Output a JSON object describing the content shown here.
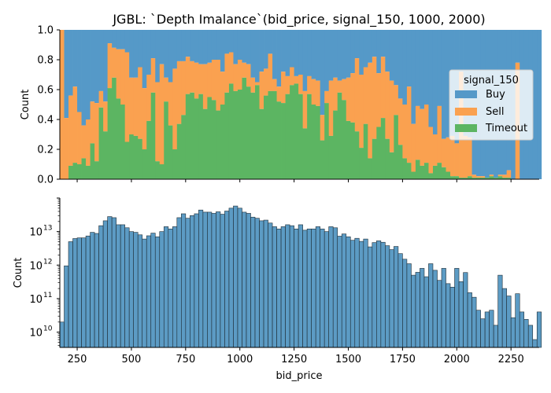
{
  "figure": {
    "title": "JGBL: `Depth Imalance`(bid_price, signal_150, 1000, 2000)",
    "xlabel": "bid_price"
  },
  "chart_data": [
    {
      "type": "bar",
      "subtype": "stacked-fill-histogram",
      "title": "JGBL: `Depth Imalance`(bid_price, signal_150, 1000, 2000)",
      "xlabel": "",
      "ylabel": "Count",
      "xlim": [
        170,
        2380
      ],
      "ylim": [
        0,
        1
      ],
      "yticks": [
        0.0,
        0.2,
        0.4,
        0.6,
        0.8,
        1.0
      ],
      "ytick_labels": [
        "0.0",
        "0.2",
        "0.4",
        "0.6",
        "0.8",
        "1.0"
      ],
      "bin_start": 170,
      "bin_width": 20,
      "legend": {
        "title": "signal_150",
        "placement": "center-right",
        "entries": [
          "Buy",
          "Sell",
          "Timeout"
        ]
      },
      "colors": {
        "Buy": "#5599c8",
        "Sell": "#faa150",
        "Timeout": "#5cb562"
      },
      "series": [
        {
          "name": "Timeout",
          "values": [
            0,
            0,
            0.09,
            0.11,
            0.1,
            0.14,
            0.09,
            0.24,
            0.12,
            0.48,
            0.32,
            0.61,
            0.68,
            0.54,
            0.5,
            0.25,
            0.3,
            0.29,
            0.27,
            0.2,
            0.39,
            0.58,
            0.12,
            0.1,
            0.52,
            0.36,
            0.2,
            0.37,
            0.43,
            0.57,
            0.58,
            0.54,
            0.57,
            0.47,
            0.55,
            0.53,
            0.46,
            0.5,
            0.58,
            0.64,
            0.59,
            0.6,
            0.68,
            0.62,
            0.58,
            0.63,
            0.47,
            0.56,
            0.59,
            0.59,
            0.52,
            0.51,
            0.57,
            0.63,
            0.64,
            0.57,
            0.34,
            0.57,
            0.5,
            0.49,
            0.26,
            0.51,
            0.29,
            0.46,
            0.58,
            0.53,
            0.39,
            0.38,
            0.32,
            0.21,
            0.37,
            0.14,
            0.27,
            0.35,
            0.41,
            0.27,
            0.18,
            0.43,
            0.23,
            0.14,
            0.11,
            0.05,
            0.13,
            0.09,
            0.11,
            0.04,
            0.09,
            0.11,
            0.08,
            0.05,
            0.02,
            0.02,
            0.01,
            0.01,
            0.02,
            0.01,
            0.01,
            0.01,
            0.01,
            0.02,
            0.01,
            0.02,
            0.01,
            0.01,
            0,
            0,
            0,
            0,
            0,
            0,
            0
          ]
        },
        {
          "name": "Sell",
          "values": [
            1,
            0.41,
            0.47,
            0.51,
            0.35,
            0.22,
            0.31,
            0.28,
            0.39,
            0.11,
            0.2,
            0.3,
            0.2,
            0.33,
            0.37,
            0.6,
            0.38,
            0.39,
            0.48,
            0.41,
            0.31,
            0.23,
            0.53,
            0.67,
            0.16,
            0.29,
            0.54,
            0.42,
            0.36,
            0.25,
            0.21,
            0.24,
            0.2,
            0.3,
            0.23,
            0.27,
            0.34,
            0.22,
            0.26,
            0.21,
            0.18,
            0.2,
            0.1,
            0.15,
            0.1,
            0.02,
            0.25,
            0.18,
            0.25,
            0.08,
            0.1,
            0.21,
            0.12,
            0.12,
            0.05,
            0.13,
            0.25,
            0.12,
            0.17,
            0.17,
            0.17,
            0.08,
            0.37,
            0.22,
            0.08,
            0.14,
            0.29,
            0.33,
            0.49,
            0.49,
            0.38,
            0.64,
            0.55,
            0.36,
            0.41,
            0.45,
            0.48,
            0.2,
            0.31,
            0.36,
            0.51,
            0.32,
            0.36,
            0.38,
            0.39,
            0.31,
            0.21,
            0.38,
            0.19,
            0.23,
            0.27,
            0.22,
            0.71,
            0.28,
            0.26,
            0.02,
            0.01,
            0.01,
            0,
            0.01,
            0,
            0.01,
            0.02,
            0.05,
            0,
            0.78,
            0,
            0,
            0,
            0,
            0
          ]
        }
      ]
    },
    {
      "type": "bar",
      "subtype": "histogram",
      "xlabel": "bid_price",
      "ylabel": "Count",
      "scale": "log",
      "xlim": [
        170,
        2380
      ],
      "ylim": [
        3500000000.0,
        100000000000000.0
      ],
      "xticks": [
        250,
        500,
        750,
        1000,
        1250,
        1500,
        1750,
        2000,
        2250
      ],
      "xtick_labels": [
        "250",
        "500",
        "750",
        "1000",
        "1250",
        "1500",
        "1750",
        "2000",
        "2250"
      ],
      "ytick_labels": [
        "10",
        "10",
        "10",
        "10",
        "10"
      ],
      "ytick_exponents": [
        "10",
        "11",
        "12",
        "13",
        ""
      ],
      "color": "#4a90be",
      "bin_start": 170,
      "bin_width": 20,
      "values": [
        20000000000.0,
        950000000000.0,
        5000000000000.0,
        6200000000000.0,
        6500000000000.0,
        6500000000000.0,
        7400000000000.0,
        9500000000000.0,
        8800000000000.0,
        15000000000000.0,
        21000000000000.0,
        28000000000000.0,
        26000000000000.0,
        16000000000000.0,
        16000000000000.0,
        13000000000000.0,
        10000000000000.0,
        9500000000000.0,
        8000000000000.0,
        6000000000000.0,
        7500000000000.0,
        9000000000000.0,
        7000000000000.0,
        10000000000000.0,
        14000000000000.0,
        12000000000000.0,
        14000000000000.0,
        26000000000000.0,
        34000000000000.0,
        25000000000000.0,
        30000000000000.0,
        34000000000000.0,
        44000000000000.0,
        38000000000000.0,
        38000000000000.0,
        35000000000000.0,
        39000000000000.0,
        33000000000000.0,
        41000000000000.0,
        50000000000000.0,
        58000000000000.0,
        50000000000000.0,
        38000000000000.0,
        35000000000000.0,
        27000000000000.0,
        25000000000000.0,
        21000000000000.0,
        22000000000000.0,
        18000000000000.0,
        14000000000000.0,
        12000000000000.0,
        14000000000000.0,
        16000000000000.0,
        15000000000000.0,
        12000000000000.0,
        16000000000000.0,
        11000000000000.0,
        12000000000000.0,
        12000000000000.0,
        14000000000000.0,
        12000000000000.0,
        10000000000000.0,
        14000000000000.0,
        13000000000000.0,
        7300000000000.0,
        8500000000000.0,
        7000000000000.0,
        5500000000000.0,
        6300000000000.0,
        5100000000000.0,
        6000000000000.0,
        3500000000000.0,
        4700000000000.0,
        5300000000000.0,
        4800000000000.0,
        3800000000000.0,
        2900000000000.0,
        3600000000000.0,
        2200000000000.0,
        1500000000000.0,
        1100000000000.0,
        500000000000.0,
        610000000000.0,
        800000000000.0,
        450000000000.0,
        1100000000000.0,
        700000000000.0,
        350000000000.0,
        800000000000.0,
        280000000000.0,
        220000000000.0,
        800000000000.0,
        320000000000.0,
        600000000000.0,
        150000000000.0,
        110000000000.0,
        45000000000.0,
        25000000000.0,
        40000000000.0,
        45000000000.0,
        16000000000.0,
        500000000000.0,
        200000000000.0,
        120000000000.0,
        27000000000.0,
        140000000000.0,
        40000000000.0,
        24000000000.0,
        16000000000.0,
        6000000000.0,
        40000000000.0
      ]
    }
  ]
}
